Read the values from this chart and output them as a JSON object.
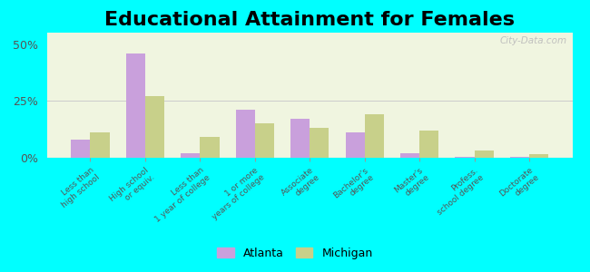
{
  "title": "Educational Attainment for Females",
  "categories": [
    "Less than\nhigh school",
    "High school\nor equiv.",
    "Less than\n1 year of college",
    "1 or more\nyears of college",
    "Associate\ndegree",
    "Bachelor's\ndegree",
    "Master's\ndegree",
    "Profess.\nschool degree",
    "Doctorate\ndegree"
  ],
  "atlanta": [
    8,
    46,
    2,
    21,
    17,
    11,
    2,
    0.5,
    0.5
  ],
  "michigan": [
    11,
    27,
    9,
    15,
    13,
    19,
    12,
    3,
    1.5
  ],
  "atlanta_color": "#c9a0dc",
  "michigan_color": "#c8d08a",
  "background_color": "#00ffff",
  "plot_bg": "#f0f5e0",
  "title_fontsize": 16,
  "ylabel_ticks": [
    0,
    25,
    50
  ],
  "ylim": [
    0,
    55
  ],
  "bar_width": 0.35,
  "watermark": "City-Data.com"
}
